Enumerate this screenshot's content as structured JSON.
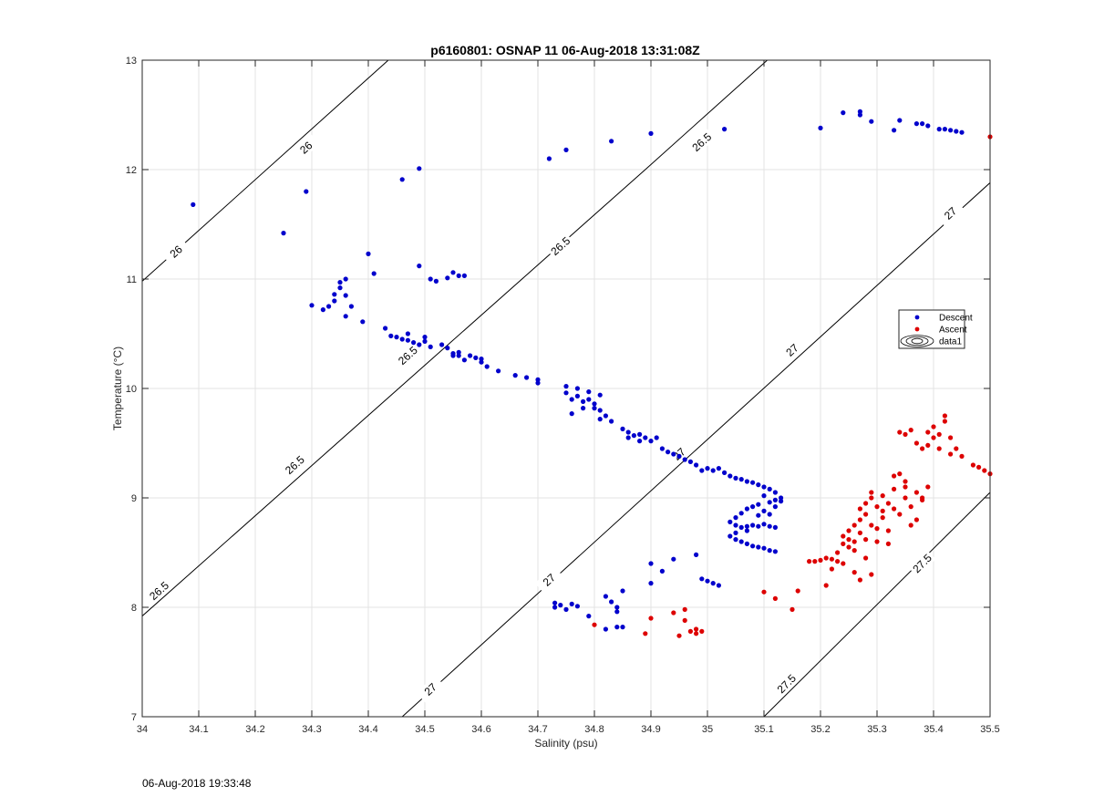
{
  "footer": {
    "timestamp": "06-Aug-2018 19:33:48"
  },
  "chart_data": {
    "type": "scatter",
    "title": "p6160801: OSNAP 11 06-Aug-2018 13:31:08Z",
    "xlabel": "Salinity (psu)",
    "ylabel": "Temperature (°C)",
    "xlim": [
      34,
      35.5
    ],
    "ylim": [
      7,
      13
    ],
    "xticks": [
      "34",
      "34.1",
      "34.2",
      "34.3",
      "34.4",
      "34.5",
      "34.6",
      "34.7",
      "34.8",
      "34.9",
      "35",
      "35.1",
      "35.2",
      "35.3",
      "35.4",
      "35.5"
    ],
    "yticks": [
      "7",
      "8",
      "9",
      "10",
      "11",
      "12",
      "13"
    ],
    "grid": true,
    "legend": {
      "placement": "right",
      "entries": [
        {
          "label": "Descent",
          "color": "#0000cc"
        },
        {
          "label": "Ascent",
          "color": "#dd0000"
        },
        {
          "label": "data1",
          "color": "#000000"
        }
      ]
    },
    "contours": [
      {
        "label": "26",
        "points": [
          [
            34,
            10.98
          ],
          [
            34.5,
            13.3
          ]
        ],
        "label_positions": [
          [
            34.06,
            11.25
          ],
          [
            34.29,
            12.2
          ]
        ]
      },
      {
        "label": "26.5",
        "points": [
          [
            34,
            7.92
          ],
          [
            34.89,
            12.0
          ],
          [
            35.3,
            13.9
          ]
        ],
        "label_positions": [
          [
            34.03,
            8.15
          ],
          [
            34.27,
            9.3
          ],
          [
            34.47,
            10.3
          ],
          [
            34.74,
            11.3
          ],
          [
            34.99,
            12.25
          ]
        ]
      },
      {
        "label": "27",
        "points": [
          [
            34.46,
            7.0
          ],
          [
            35.5,
            11.88
          ]
        ],
        "label_positions": [
          [
            34.51,
            7.25
          ],
          [
            34.72,
            8.25
          ],
          [
            34.95,
            9.4
          ],
          [
            35.15,
            10.35
          ],
          [
            35.43,
            11.6
          ]
        ]
      },
      {
        "label": "27.5",
        "points": [
          [
            35.1,
            7.0
          ],
          [
            35.5,
            9.05
          ]
        ],
        "label_positions": [
          [
            35.14,
            7.3
          ],
          [
            35.38,
            8.4
          ]
        ]
      }
    ],
    "series": [
      {
        "name": "Descent",
        "color": "#0000cc",
        "points": [
          [
            34.09,
            11.68
          ],
          [
            34.25,
            11.42
          ],
          [
            34.29,
            11.8
          ],
          [
            34.46,
            11.91
          ],
          [
            34.49,
            12.01
          ],
          [
            34.72,
            12.1
          ],
          [
            34.75,
            12.18
          ],
          [
            34.83,
            12.26
          ],
          [
            34.9,
            12.33
          ],
          [
            35.03,
            12.37
          ],
          [
            35.2,
            12.38
          ],
          [
            35.24,
            12.52
          ],
          [
            35.27,
            12.53
          ],
          [
            35.27,
            12.5
          ],
          [
            35.29,
            12.44
          ],
          [
            35.33,
            12.36
          ],
          [
            35.34,
            12.45
          ],
          [
            35.37,
            12.42
          ],
          [
            35.38,
            12.42
          ],
          [
            35.39,
            12.4
          ],
          [
            35.41,
            12.37
          ],
          [
            35.42,
            12.37
          ],
          [
            35.43,
            12.36
          ],
          [
            35.44,
            12.35
          ],
          [
            35.45,
            12.34
          ],
          [
            34.3,
            10.76
          ],
          [
            34.32,
            10.72
          ],
          [
            34.33,
            10.75
          ],
          [
            34.34,
            10.8
          ],
          [
            34.34,
            10.86
          ],
          [
            34.35,
            10.92
          ],
          [
            34.35,
            10.97
          ],
          [
            34.36,
            10.85
          ],
          [
            34.36,
            11.0
          ],
          [
            34.36,
            10.66
          ],
          [
            34.37,
            10.75
          ],
          [
            34.39,
            10.61
          ],
          [
            34.4,
            11.23
          ],
          [
            34.41,
            11.05
          ],
          [
            34.49,
            11.12
          ],
          [
            34.51,
            11.0
          ],
          [
            34.52,
            10.98
          ],
          [
            34.54,
            11.01
          ],
          [
            34.55,
            11.06
          ],
          [
            34.56,
            11.03
          ],
          [
            34.57,
            11.03
          ],
          [
            34.43,
            10.55
          ],
          [
            34.44,
            10.48
          ],
          [
            34.45,
            10.47
          ],
          [
            34.46,
            10.45
          ],
          [
            34.47,
            10.5
          ],
          [
            34.47,
            10.44
          ],
          [
            34.48,
            10.42
          ],
          [
            34.49,
            10.4
          ],
          [
            34.5,
            10.47
          ],
          [
            34.5,
            10.43
          ],
          [
            34.51,
            10.38
          ],
          [
            34.53,
            10.4
          ],
          [
            34.54,
            10.37
          ],
          [
            34.55,
            10.32
          ],
          [
            34.55,
            10.3
          ],
          [
            34.56,
            10.33
          ],
          [
            34.56,
            10.3
          ],
          [
            34.57,
            10.26
          ],
          [
            34.58,
            10.3
          ],
          [
            34.59,
            10.28
          ],
          [
            34.6,
            10.24
          ],
          [
            34.6,
            10.27
          ],
          [
            34.61,
            10.2
          ],
          [
            34.63,
            10.16
          ],
          [
            34.66,
            10.12
          ],
          [
            34.68,
            10.1
          ],
          [
            34.7,
            10.08
          ],
          [
            34.7,
            10.05
          ],
          [
            34.75,
            10.02
          ],
          [
            34.75,
            9.96
          ],
          [
            34.76,
            9.9
          ],
          [
            34.77,
            10.0
          ],
          [
            34.77,
            9.93
          ],
          [
            34.78,
            9.88
          ],
          [
            34.78,
            9.82
          ],
          [
            34.79,
            9.97
          ],
          [
            34.79,
            9.9
          ],
          [
            34.8,
            9.86
          ],
          [
            34.8,
            9.82
          ],
          [
            34.81,
            9.94
          ],
          [
            34.81,
            9.8
          ],
          [
            34.82,
            9.75
          ],
          [
            34.81,
            9.72
          ],
          [
            34.83,
            9.7
          ],
          [
            34.76,
            9.77
          ],
          [
            34.85,
            9.63
          ],
          [
            34.86,
            9.6
          ],
          [
            34.86,
            9.55
          ],
          [
            34.87,
            9.57
          ],
          [
            34.88,
            9.52
          ],
          [
            34.88,
            9.58
          ],
          [
            34.89,
            9.55
          ],
          [
            34.9,
            9.52
          ],
          [
            34.91,
            9.55
          ],
          [
            34.92,
            9.45
          ],
          [
            34.93,
            9.42
          ],
          [
            34.94,
            9.4
          ],
          [
            34.95,
            9.38
          ],
          [
            34.96,
            9.35
          ],
          [
            34.97,
            9.33
          ],
          [
            34.98,
            9.3
          ],
          [
            34.99,
            9.25
          ],
          [
            35.0,
            9.27
          ],
          [
            35.01,
            9.25
          ],
          [
            35.02,
            9.27
          ],
          [
            35.03,
            9.23
          ],
          [
            35.04,
            9.2
          ],
          [
            35.05,
            9.18
          ],
          [
            35.06,
            9.17
          ],
          [
            35.07,
            9.15
          ],
          [
            35.08,
            9.14
          ],
          [
            35.09,
            9.12
          ],
          [
            35.1,
            9.1
          ],
          [
            35.11,
            9.08
          ],
          [
            35.12,
            9.05
          ],
          [
            35.13,
            9.0
          ],
          [
            35.12,
            8.98
          ],
          [
            35.11,
            8.96
          ],
          [
            35.1,
            9.02
          ],
          [
            35.09,
            8.94
          ],
          [
            35.08,
            8.92
          ],
          [
            35.07,
            8.9
          ],
          [
            35.06,
            8.86
          ],
          [
            35.05,
            8.82
          ],
          [
            35.04,
            8.78
          ],
          [
            35.05,
            8.75
          ],
          [
            35.06,
            8.73
          ],
          [
            35.07,
            8.74
          ],
          [
            35.08,
            8.75
          ],
          [
            35.09,
            8.74
          ],
          [
            35.1,
            8.76
          ],
          [
            35.11,
            8.74
          ],
          [
            35.12,
            8.73
          ],
          [
            35.04,
            8.65
          ],
          [
            35.05,
            8.62
          ],
          [
            35.06,
            8.6
          ],
          [
            35.07,
            8.58
          ],
          [
            35.08,
            8.56
          ],
          [
            35.09,
            8.55
          ],
          [
            35.1,
            8.54
          ],
          [
            35.11,
            8.52
          ],
          [
            35.12,
            8.51
          ],
          [
            35.05,
            8.68
          ],
          [
            35.07,
            8.7
          ],
          [
            35.09,
            8.84
          ],
          [
            35.11,
            8.85
          ],
          [
            35.1,
            8.88
          ],
          [
            35.12,
            8.92
          ],
          [
            35.13,
            8.97
          ],
          [
            34.73,
            8.04
          ],
          [
            34.73,
            8.0
          ],
          [
            34.74,
            8.02
          ],
          [
            34.75,
            7.98
          ],
          [
            34.76,
            8.03
          ],
          [
            34.77,
            8.01
          ],
          [
            34.79,
            7.92
          ],
          [
            34.82,
            8.1
          ],
          [
            34.83,
            8.05
          ],
          [
            34.84,
            8.0
          ],
          [
            34.84,
            7.96
          ],
          [
            34.85,
            8.15
          ],
          [
            34.82,
            7.8
          ],
          [
            34.84,
            7.82
          ],
          [
            34.85,
            7.82
          ],
          [
            34.9,
            8.4
          ],
          [
            34.9,
            8.22
          ],
          [
            34.92,
            8.33
          ],
          [
            34.94,
            8.44
          ],
          [
            34.98,
            8.48
          ],
          [
            34.99,
            8.26
          ],
          [
            35.0,
            8.24
          ],
          [
            35.01,
            8.22
          ],
          [
            35.02,
            8.2
          ]
        ]
      },
      {
        "name": "Ascent",
        "color": "#dd0000",
        "points": [
          [
            35.5,
            12.3
          ],
          [
            34.8,
            7.84
          ],
          [
            34.89,
            7.76
          ],
          [
            34.9,
            7.9
          ],
          [
            34.94,
            7.95
          ],
          [
            34.95,
            7.74
          ],
          [
            34.96,
            7.98
          ],
          [
            34.96,
            7.88
          ],
          [
            34.97,
            7.78
          ],
          [
            34.98,
            7.8
          ],
          [
            34.98,
            7.76
          ],
          [
            34.99,
            7.78
          ],
          [
            35.1,
            8.14
          ],
          [
            35.12,
            8.08
          ],
          [
            35.15,
            7.98
          ],
          [
            35.16,
            8.15
          ],
          [
            35.18,
            8.42
          ],
          [
            35.19,
            8.42
          ],
          [
            35.2,
            8.43
          ],
          [
            35.21,
            8.45
          ],
          [
            35.22,
            8.44
          ],
          [
            35.23,
            8.5
          ],
          [
            35.23,
            8.42
          ],
          [
            35.24,
            8.58
          ],
          [
            35.24,
            8.65
          ],
          [
            35.25,
            8.62
          ],
          [
            35.25,
            8.55
          ],
          [
            35.25,
            8.7
          ],
          [
            35.26,
            8.6
          ],
          [
            35.26,
            8.75
          ],
          [
            35.27,
            8.68
          ],
          [
            35.27,
            8.8
          ],
          [
            35.27,
            8.9
          ],
          [
            35.28,
            8.62
          ],
          [
            35.28,
            8.95
          ],
          [
            35.28,
            8.85
          ],
          [
            35.29,
            8.75
          ],
          [
            35.29,
            9.0
          ],
          [
            35.3,
            8.6
          ],
          [
            35.3,
            8.92
          ],
          [
            35.31,
            8.82
          ],
          [
            35.31,
            9.02
          ],
          [
            35.32,
            8.7
          ],
          [
            35.32,
            8.95
          ],
          [
            35.32,
            8.58
          ],
          [
            35.33,
            8.9
          ],
          [
            35.33,
            9.2
          ],
          [
            35.34,
            9.22
          ],
          [
            35.34,
            8.85
          ],
          [
            35.35,
            9.1
          ],
          [
            35.35,
            9.0
          ],
          [
            35.36,
            8.92
          ],
          [
            35.36,
            8.75
          ],
          [
            35.37,
            9.05
          ],
          [
            35.37,
            8.8
          ],
          [
            35.38,
            9.0
          ],
          [
            35.39,
            9.1
          ],
          [
            35.34,
            9.6
          ],
          [
            35.35,
            9.58
          ],
          [
            35.36,
            9.62
          ],
          [
            35.37,
            9.5
          ],
          [
            35.38,
            9.45
          ],
          [
            35.39,
            9.6
          ],
          [
            35.39,
            9.48
          ],
          [
            35.4,
            9.65
          ],
          [
            35.4,
            9.55
          ],
          [
            35.41,
            9.45
          ],
          [
            35.41,
            9.58
          ],
          [
            35.42,
            9.7
          ],
          [
            35.42,
            9.75
          ],
          [
            35.43,
            9.55
          ],
          [
            35.43,
            9.4
          ],
          [
            35.44,
            9.45
          ],
          [
            35.45,
            9.38
          ],
          [
            35.47,
            9.3
          ],
          [
            35.48,
            9.28
          ],
          [
            35.49,
            9.25
          ],
          [
            35.5,
            9.22
          ],
          [
            35.24,
            8.4
          ],
          [
            35.26,
            8.32
          ],
          [
            35.28,
            8.45
          ],
          [
            35.29,
            8.3
          ],
          [
            35.27,
            8.25
          ],
          [
            35.22,
            8.35
          ],
          [
            35.21,
            8.2
          ],
          [
            35.3,
            8.72
          ],
          [
            35.31,
            8.88
          ],
          [
            35.26,
            8.52
          ],
          [
            35.29,
            9.05
          ],
          [
            35.33,
            9.08
          ],
          [
            35.35,
            9.15
          ],
          [
            35.38,
            8.98
          ]
        ]
      }
    ]
  }
}
